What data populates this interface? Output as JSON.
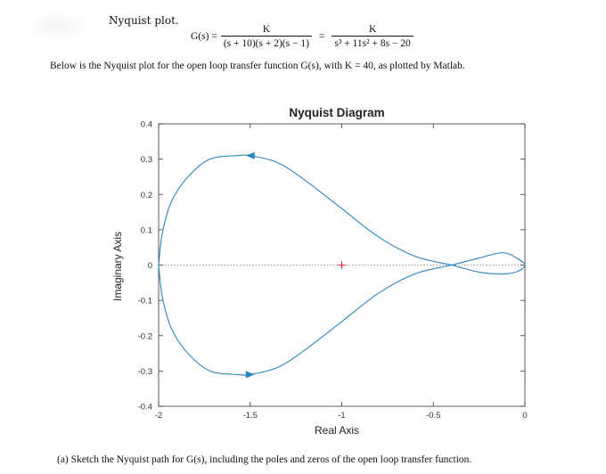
{
  "doc": {
    "heading": "Nyquist plot.",
    "formula": {
      "lhs": "G(s) =",
      "num1": "K",
      "den1": "(s + 10)(s + 2)(s − 1)",
      "eq": "=",
      "num2": "K",
      "den2": "s³ + 11s² + 8s − 20"
    },
    "intro": "Below is the Nyquist plot for the open loop transfer function G(s), with K = 40, as plotted by Matlab.",
    "question": "(a) Sketch the Nyquist path for G(s), including the poles and zeros of the open loop transfer function."
  },
  "chart_data": {
    "type": "line",
    "title": "Nyquist Diagram",
    "xlabel": "Real Axis",
    "ylabel": "Imaginary Axis",
    "xlim": [
      -2,
      0
    ],
    "ylim": [
      -0.4,
      0.4
    ],
    "xticks": [
      "-2",
      "-1.5",
      "-1",
      "-0.5",
      "0"
    ],
    "yticks": [
      "0.4",
      "0.3",
      "0.2",
      "0.1",
      "0",
      "-0.1",
      "-0.2",
      "-0.3",
      "-0.4"
    ],
    "critical_point": {
      "x": -1,
      "y": 0,
      "marker": "+"
    },
    "zero_line": "dotted",
    "series": [
      {
        "color": "#2a85c4",
        "points": [
          {
            "x": -2.0,
            "y": 0.0
          },
          {
            "x": -1.98,
            "y": 0.09
          },
          {
            "x": -1.93,
            "y": 0.18
          },
          {
            "x": -1.84,
            "y": 0.25
          },
          {
            "x": -1.72,
            "y": 0.3
          },
          {
            "x": -1.57,
            "y": 0.31
          },
          {
            "x": -1.5,
            "y": 0.31
          },
          {
            "x": -1.35,
            "y": 0.29
          },
          {
            "x": -1.2,
            "y": 0.24
          },
          {
            "x": -1.0,
            "y": 0.16
          },
          {
            "x": -0.8,
            "y": 0.08
          },
          {
            "x": -0.6,
            "y": 0.025
          },
          {
            "x": -0.4,
            "y": 0.0
          },
          {
            "x": -0.25,
            "y": -0.02
          },
          {
            "x": -0.12,
            "y": -0.025
          },
          {
            "x": -0.04,
            "y": -0.018
          },
          {
            "x": 0.0,
            "y": 0.0
          },
          {
            "x": -0.04,
            "y": 0.018
          },
          {
            "x": -0.12,
            "y": 0.035
          },
          {
            "x": -0.25,
            "y": 0.02
          },
          {
            "x": -0.4,
            "y": 0.0
          },
          {
            "x": -0.6,
            "y": -0.025
          },
          {
            "x": -0.8,
            "y": -0.08
          },
          {
            "x": -1.0,
            "y": -0.16
          },
          {
            "x": -1.2,
            "y": -0.24
          },
          {
            "x": -1.35,
            "y": -0.29
          },
          {
            "x": -1.5,
            "y": -0.31
          },
          {
            "x": -1.57,
            "y": -0.31
          },
          {
            "x": -1.72,
            "y": -0.3
          },
          {
            "x": -1.84,
            "y": -0.25
          },
          {
            "x": -1.93,
            "y": -0.18
          },
          {
            "x": -1.98,
            "y": -0.09
          },
          {
            "x": -2.0,
            "y": 0.0
          }
        ],
        "arrows": [
          {
            "x": -1.5,
            "y": 0.31,
            "direction": "left"
          },
          {
            "x": -1.5,
            "y": -0.31,
            "direction": "right"
          }
        ]
      }
    ],
    "grid": false
  }
}
